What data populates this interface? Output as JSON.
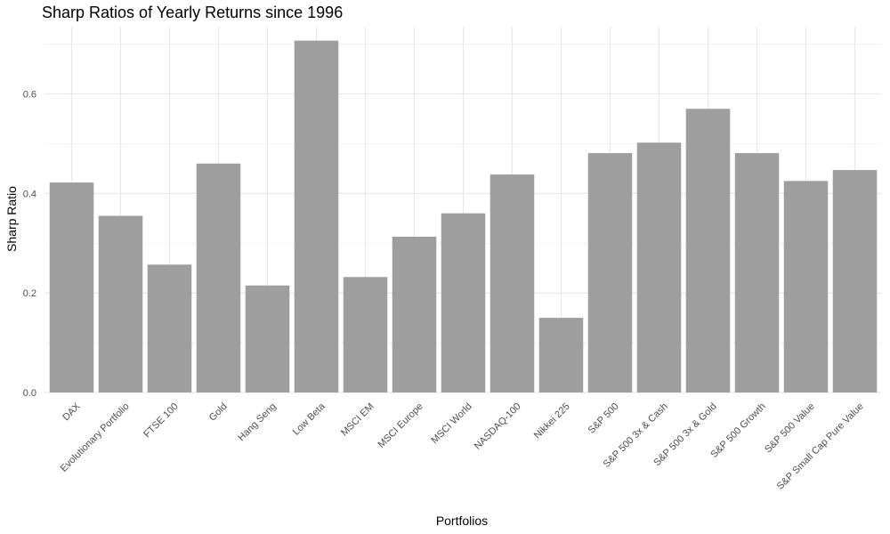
{
  "chart_data": {
    "type": "bar",
    "title": "Sharp Ratios of Yearly Returns since 1996",
    "xlabel": "Portfolios",
    "ylabel": "Sharp Ratio",
    "categories": [
      "DAX",
      "Evolutionary Portfolio",
      "FTSE 100",
      "Gold",
      "Hang Seng",
      "Low Beta",
      "MSCI EM",
      "MSCI Europe",
      "MSCI World",
      "NASDAQ-100",
      "Nikkei 225",
      "S&P 500",
      "S&P 500 3x & Cash",
      "S&P 500 3x & Gold",
      "S&P 500 Growth",
      "S&P 500 Value",
      "S&P Small Cap Pure Value"
    ],
    "values": [
      0.422,
      0.355,
      0.257,
      0.46,
      0.215,
      0.707,
      0.232,
      0.313,
      0.36,
      0.438,
      0.15,
      0.481,
      0.502,
      0.57,
      0.481,
      0.425,
      0.447
    ],
    "ylim": [
      0,
      0.735
    ],
    "yticks": [
      0.0,
      0.2,
      0.4,
      0.6
    ],
    "ytick_labels": [
      "0.0",
      "0.2",
      "0.4",
      "0.6"
    ],
    "grid": true,
    "legend": "none",
    "bar_color": "#9e9e9e"
  }
}
